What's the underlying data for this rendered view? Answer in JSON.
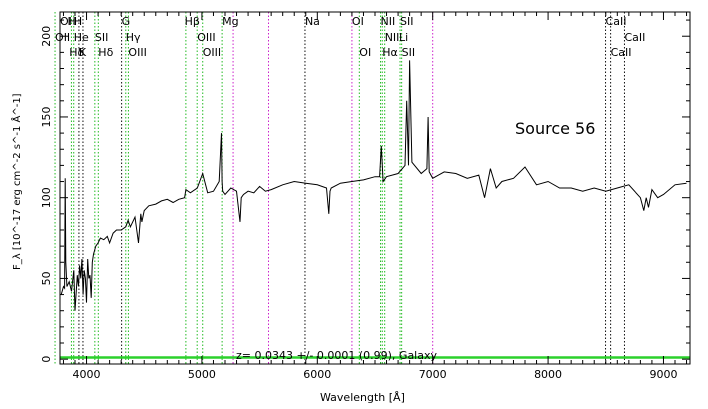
{
  "chart_data": {
    "type": "line",
    "annotation": "Source 56",
    "redshift_text": "z= 0.0343 +/- 0.0001 (0.99), Galaxy",
    "xlabel": "Wavelength [Å]",
    "ylabel": "F_λ [10^-17 erg cm^-2 s^-1 Å^-1]",
    "xlim": [
      3770,
      9230
    ],
    "ylim": [
      -3,
      215
    ],
    "xticks": [
      4000,
      5000,
      6000,
      7000,
      8000,
      9000
    ],
    "yticks": [
      0,
      50,
      100,
      150,
      200
    ],
    "grid": false,
    "spectrum": {
      "color": "#000000",
      "x": [
        3780,
        3800,
        3810,
        3815,
        3820,
        3830,
        3850,
        3870,
        3890,
        3900,
        3920,
        3930,
        3940,
        3950,
        3960,
        3970,
        3980,
        3990,
        4000,
        4010,
        4020,
        4030,
        4040,
        4050,
        4060,
        4080,
        4100,
        4120,
        4150,
        4180,
        4200,
        4230,
        4260,
        4300,
        4340,
        4360,
        4380,
        4420,
        4450,
        4470,
        4480,
        4500,
        4540,
        4600,
        4650,
        4700,
        4750,
        4800,
        4850,
        4861,
        4900,
        4960,
        5007,
        5050,
        5100,
        5150,
        5170,
        5175,
        5180,
        5200,
        5250,
        5300,
        5330,
        5340,
        5360,
        5400,
        5450,
        5500,
        5550,
        5600,
        5700,
        5800,
        5900,
        6000,
        6080,
        6100,
        6110,
        6120,
        6200,
        6300,
        6400,
        6500,
        6540,
        6555,
        6570,
        6600,
        6700,
        6760,
        6775,
        6790,
        6800,
        6820,
        6900,
        6950,
        6960,
        6970,
        7000,
        7050,
        7100,
        7200,
        7300,
        7400,
        7450,
        7500,
        7550,
        7600,
        7700,
        7800,
        7900,
        8000,
        8100,
        8200,
        8300,
        8400,
        8500,
        8600,
        8700,
        8800,
        8830,
        8850,
        8870,
        8900,
        8950,
        9000,
        9100,
        9200
      ],
      "y": [
        40,
        45,
        44,
        112,
        60,
        45,
        48,
        42,
        55,
        30,
        52,
        45,
        58,
        50,
        62,
        40,
        55,
        50,
        35,
        62,
        50,
        52,
        38,
        60,
        65,
        70,
        72,
        75,
        74,
        76,
        72,
        78,
        80,
        80,
        82,
        86,
        82,
        88,
        72,
        90,
        85,
        92,
        95,
        96,
        98,
        99,
        97,
        99,
        100,
        105,
        103,
        106,
        115,
        103,
        104,
        110,
        140,
        110,
        104,
        102,
        106,
        104,
        85,
        100,
        102,
        104,
        103,
        107,
        104,
        105,
        108,
        110,
        109,
        108,
        106,
        90,
        104,
        106,
        109,
        110,
        111,
        113,
        113,
        132,
        110,
        113,
        115,
        120,
        160,
        120,
        185,
        122,
        115,
        118,
        150,
        116,
        112,
        114,
        116,
        115,
        112,
        114,
        100,
        118,
        106,
        110,
        112,
        119,
        108,
        110,
        106,
        106,
        104,
        106,
        104,
        106,
        108,
        100,
        92,
        100,
        94,
        105,
        100,
        102,
        108,
        109
      ]
    },
    "continuum_fit": {
      "color": "#2bd12b",
      "y": 1
    },
    "line_markers": [
      {
        "x": 3727,
        "color": "#22bb22"
      },
      {
        "x": 3869,
        "color": "#22bb22"
      },
      {
        "x": 3889,
        "color": "#22bb22"
      },
      {
        "x": 3934,
        "color": "#111111"
      },
      {
        "x": 3969,
        "color": "#111111"
      },
      {
        "x": 4072,
        "color": "#22bb22"
      },
      {
        "x": 4102,
        "color": "#22bb22"
      },
      {
        "x": 4304,
        "color": "#111111"
      },
      {
        "x": 4340,
        "color": "#22bb22"
      },
      {
        "x": 4363,
        "color": "#22bb22"
      },
      {
        "x": 4861,
        "color": "#22bb22"
      },
      {
        "x": 4959,
        "color": "#22bb22"
      },
      {
        "x": 5007,
        "color": "#22bb22"
      },
      {
        "x": 5175,
        "color": "#22bb22"
      },
      {
        "x": 5270,
        "color": "#cc22cc"
      },
      {
        "x": 5577,
        "color": "#cc22cc"
      },
      {
        "x": 5893,
        "color": "#111111"
      },
      {
        "x": 6300,
        "color": "#cc22cc"
      },
      {
        "x": 6364,
        "color": "#22bb22"
      },
      {
        "x": 6548,
        "color": "#22bb22"
      },
      {
        "x": 6563,
        "color": "#22bb22"
      },
      {
        "x": 6584,
        "color": "#22bb22"
      },
      {
        "x": 6717,
        "color": "#22bb22"
      },
      {
        "x": 6731,
        "color": "#22bb22"
      },
      {
        "x": 7000,
        "color": "#cc22cc"
      },
      {
        "x": 8498,
        "color": "#111111"
      },
      {
        "x": 8542,
        "color": "#111111"
      },
      {
        "x": 8662,
        "color": "#111111"
      }
    ],
    "top_labels": [
      {
        "text": "OI",
        "x": 3770,
        "row": 1
      },
      {
        "text": "H",
        "x": 3835,
        "row": 1
      },
      {
        "text": "H",
        "x": 3890,
        "row": 1
      },
      {
        "text": "G",
        "x": 4304,
        "row": 1
      },
      {
        "text": "Hβ",
        "x": 4850,
        "row": 1
      },
      {
        "text": "Mg",
        "x": 5175,
        "row": 1
      },
      {
        "text": "Na",
        "x": 5893,
        "row": 1
      },
      {
        "text": "OI",
        "x": 6300,
        "row": 1
      },
      {
        "text": "NII",
        "x": 6548,
        "row": 1
      },
      {
        "text": "SII",
        "x": 6717,
        "row": 1
      },
      {
        "text": "CaII",
        "x": 8498,
        "row": 1
      },
      {
        "text": "OII",
        "x": 3727,
        "row": 2
      },
      {
        "text": "He",
        "x": 3889,
        "row": 2
      },
      {
        "text": "SII",
        "x": 4072,
        "row": 2
      },
      {
        "text": "Hγ",
        "x": 4340,
        "row": 2
      },
      {
        "text": "OIII",
        "x": 4959,
        "row": 2
      },
      {
        "text": "NII",
        "x": 6584,
        "row": 2
      },
      {
        "text": "Li",
        "x": 6708,
        "row": 2
      },
      {
        "text": "CaII",
        "x": 8662,
        "row": 2
      },
      {
        "text": "Hδ",
        "x": 3850,
        "row": 3
      },
      {
        "text": "K",
        "x": 3934,
        "row": 3
      },
      {
        "text": "Hδ",
        "x": 4102,
        "row": 3
      },
      {
        "text": "OIII",
        "x": 4363,
        "row": 3
      },
      {
        "text": "OIII",
        "x": 5007,
        "row": 3
      },
      {
        "text": "OI",
        "x": 6364,
        "row": 3
      },
      {
        "text": "Hα",
        "x": 6563,
        "row": 3
      },
      {
        "text": "SII",
        "x": 6731,
        "row": 3
      },
      {
        "text": "CaII",
        "x": 8542,
        "row": 3
      }
    ]
  }
}
